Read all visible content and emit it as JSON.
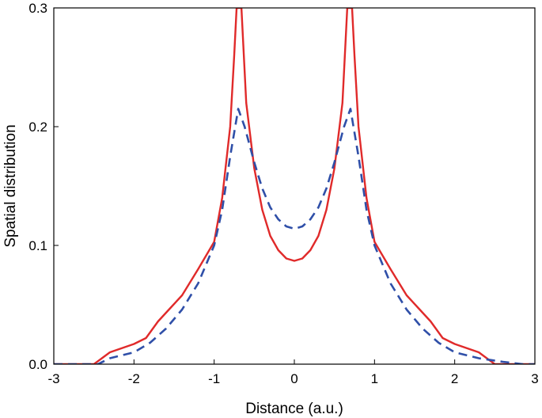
{
  "chart_data": {
    "type": "line",
    "title": "",
    "xlabel": "Distance (a.u.)",
    "ylabel": "Spatial distribution",
    "xlim": [
      -3,
      3
    ],
    "ylim": [
      0,
      0.3
    ],
    "x_ticks": [
      -3,
      -2,
      -1,
      0,
      1,
      2,
      3
    ],
    "x_tick_labels": [
      "-3",
      "-2",
      "-1",
      "0",
      "1",
      "2",
      "3"
    ],
    "y_ticks": [
      0.0,
      0.1,
      0.2,
      0.3
    ],
    "y_tick_labels": [
      "0.0",
      "0.1",
      "0.2",
      "0.3"
    ],
    "grid": false,
    "legend": "none",
    "series": [
      {
        "color": "#e02a2a",
        "style": "solid",
        "points": [
          [
            -3.0,
            0.0
          ],
          [
            -2.5,
            0.0
          ],
          [
            -2.4,
            0.005
          ],
          [
            -2.3,
            0.01
          ],
          [
            -2.0,
            0.017
          ],
          [
            -1.85,
            0.022
          ],
          [
            -1.7,
            0.036
          ],
          [
            -1.55,
            0.047
          ],
          [
            -1.4,
            0.058
          ],
          [
            -1.2,
            0.08
          ],
          [
            -1.0,
            0.103
          ],
          [
            -0.9,
            0.14
          ],
          [
            -0.8,
            0.2
          ],
          [
            -0.75,
            0.26
          ],
          [
            -0.72,
            0.3
          ],
          [
            -0.66,
            0.3
          ],
          [
            -0.6,
            0.22
          ],
          [
            -0.5,
            0.165
          ],
          [
            -0.4,
            0.13
          ],
          [
            -0.3,
            0.108
          ],
          [
            -0.2,
            0.096
          ],
          [
            -0.1,
            0.089
          ],
          [
            0.0,
            0.087
          ],
          [
            0.1,
            0.089
          ],
          [
            0.2,
            0.096
          ],
          [
            0.3,
            0.108
          ],
          [
            0.4,
            0.13
          ],
          [
            0.5,
            0.165
          ],
          [
            0.6,
            0.22
          ],
          [
            0.66,
            0.3
          ],
          [
            0.72,
            0.3
          ],
          [
            0.75,
            0.26
          ],
          [
            0.8,
            0.2
          ],
          [
            0.9,
            0.14
          ],
          [
            1.0,
            0.103
          ],
          [
            1.2,
            0.08
          ],
          [
            1.4,
            0.058
          ],
          [
            1.55,
            0.047
          ],
          [
            1.7,
            0.036
          ],
          [
            1.85,
            0.022
          ],
          [
            2.0,
            0.017
          ],
          [
            2.3,
            0.01
          ],
          [
            2.4,
            0.005
          ],
          [
            2.5,
            0.0
          ],
          [
            3.0,
            0.0
          ]
        ]
      },
      {
        "color": "#2f4fa8",
        "style": "dashed",
        "points": [
          [
            -3.0,
            0.0
          ],
          [
            -2.45,
            0.0
          ],
          [
            -2.3,
            0.005
          ],
          [
            -2.0,
            0.01
          ],
          [
            -1.8,
            0.018
          ],
          [
            -1.6,
            0.03
          ],
          [
            -1.4,
            0.046
          ],
          [
            -1.2,
            0.068
          ],
          [
            -1.0,
            0.1
          ],
          [
            -0.9,
            0.13
          ],
          [
            -0.8,
            0.175
          ],
          [
            -0.7,
            0.215
          ],
          [
            -0.62,
            0.2
          ],
          [
            -0.5,
            0.17
          ],
          [
            -0.4,
            0.148
          ],
          [
            -0.3,
            0.132
          ],
          [
            -0.2,
            0.122
          ],
          [
            -0.1,
            0.116
          ],
          [
            0.0,
            0.114
          ],
          [
            0.1,
            0.116
          ],
          [
            0.2,
            0.122
          ],
          [
            0.3,
            0.132
          ],
          [
            0.4,
            0.148
          ],
          [
            0.5,
            0.17
          ],
          [
            0.62,
            0.2
          ],
          [
            0.7,
            0.215
          ],
          [
            0.8,
            0.175
          ],
          [
            0.9,
            0.13
          ],
          [
            1.0,
            0.1
          ],
          [
            1.2,
            0.068
          ],
          [
            1.4,
            0.046
          ],
          [
            1.6,
            0.03
          ],
          [
            1.8,
            0.018
          ],
          [
            2.0,
            0.01
          ],
          [
            2.3,
            0.005
          ],
          [
            2.6,
            0.002
          ],
          [
            2.85,
            0.0
          ],
          [
            3.0,
            0.0
          ]
        ]
      }
    ]
  }
}
